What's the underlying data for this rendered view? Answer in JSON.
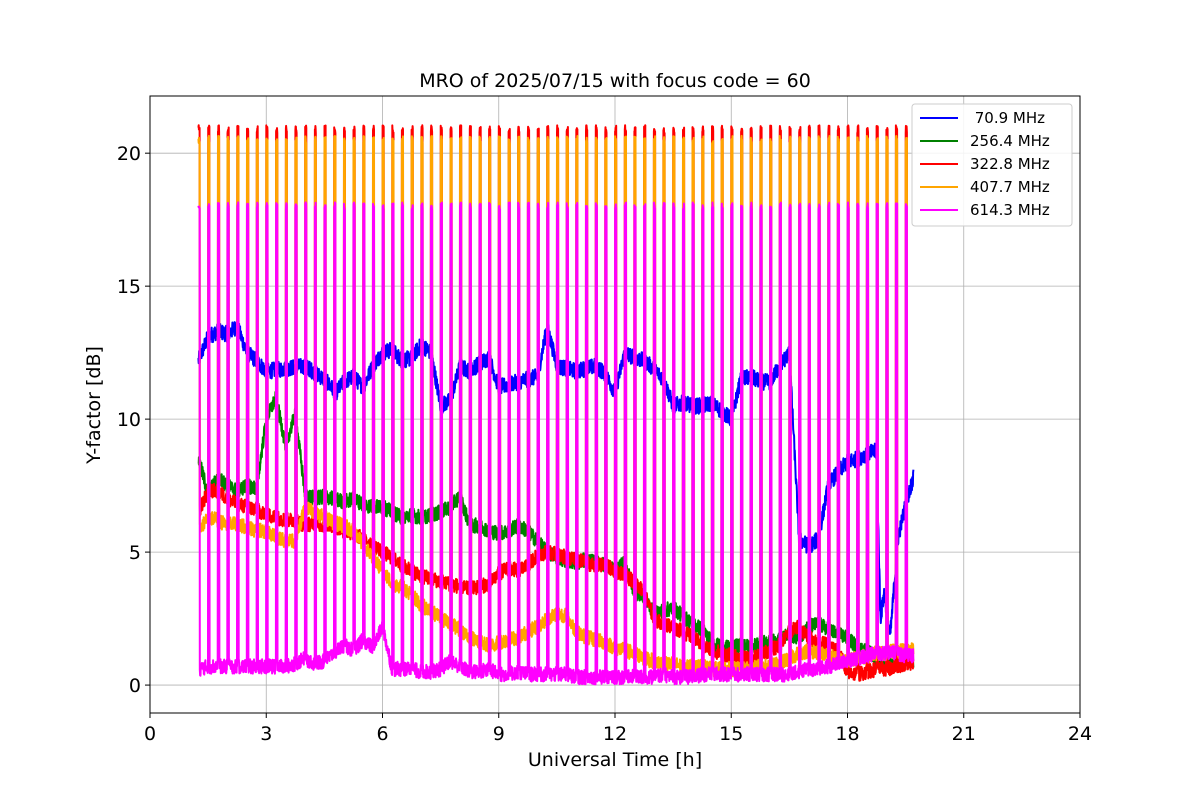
{
  "chart_data": {
    "type": "line",
    "title": "MRO of 2025/07/15 with focus code = 60",
    "xlabel": "Universal Time [h]",
    "ylabel": "Y-factor [dB]",
    "xlim": [
      0,
      24
    ],
    "ylim": [
      -1.05,
      22.15
    ],
    "x_ticks": [
      0,
      3,
      6,
      9,
      12,
      15,
      18,
      21,
      24
    ],
    "y_ticks": [
      0,
      5,
      10,
      15,
      20
    ],
    "grid": true,
    "legend_position": "top-right",
    "calibration_spikes": {
      "start_h": 1.25,
      "end_h": 19.6,
      "period_h": 0.25,
      "width_h": 0.035,
      "peak_values": {
        "322.8 MHz": 20.9,
        "407.7 MHz": 20.5,
        "614.3 MHz": 18.0
      }
    },
    "series": [
      {
        "name": " 70.9 MHz",
        "color": "#0000ff",
        "x": [
          1.25,
          1.5,
          1.75,
          2.0,
          2.25,
          2.5,
          2.75,
          3.0,
          3.5,
          4.0,
          4.5,
          4.8,
          5.0,
          5.25,
          5.5,
          5.75,
          6.0,
          6.25,
          6.5,
          6.75,
          7.0,
          7.25,
          7.5,
          7.75,
          8.0,
          8.25,
          8.5,
          8.75,
          9.0,
          9.5,
          10.0,
          10.25,
          10.5,
          11.0,
          11.5,
          11.75,
          12.0,
          12.25,
          12.5,
          12.75,
          13.0,
          13.25,
          13.5,
          13.75,
          14.0,
          14.25,
          14.5,
          14.75,
          15.0,
          15.25,
          15.5,
          15.75,
          16.0,
          16.25,
          16.5,
          16.75,
          17.0,
          17.25,
          17.5,
          17.75,
          18.0,
          18.25,
          18.5,
          18.75,
          18.85,
          18.95,
          19.1,
          19.3,
          19.5,
          19.7
        ],
        "values": [
          12.2,
          13.1,
          13.3,
          13.2,
          13.5,
          12.5,
          12.2,
          11.8,
          11.9,
          12.0,
          11.5,
          11.0,
          11.4,
          11.6,
          11.2,
          12.0,
          12.5,
          12.6,
          12.2,
          12.3,
          12.8,
          12.5,
          10.5,
          10.7,
          12.0,
          11.8,
          12.1,
          12.3,
          11.2,
          11.4,
          11.6,
          13.5,
          12.0,
          11.8,
          12.0,
          11.7,
          11.0,
          12.5,
          12.3,
          12.2,
          11.9,
          11.5,
          10.5,
          10.6,
          10.5,
          10.5,
          10.6,
          10.3,
          10.0,
          11.5,
          11.6,
          11.4,
          11.4,
          12.0,
          12.5,
          5.5,
          5.2,
          5.5,
          7.5,
          8.0,
          8.4,
          8.5,
          8.7,
          8.8,
          2.5,
          3.5,
          1.8,
          5.5,
          6.8,
          7.8
        ]
      },
      {
        "name": "256.4 MHz",
        "color": "#008000",
        "x": [
          1.25,
          1.5,
          1.75,
          2.0,
          2.25,
          2.5,
          2.75,
          3.0,
          3.25,
          3.5,
          3.75,
          4.0,
          4.25,
          4.5,
          4.75,
          5.0,
          5.25,
          5.5,
          5.75,
          6.0,
          6.25,
          6.5,
          6.75,
          7.0,
          7.25,
          7.5,
          7.75,
          8.0,
          8.25,
          8.5,
          8.75,
          9.0,
          9.25,
          9.5,
          9.75,
          10.0,
          10.25,
          10.5,
          10.75,
          11.0,
          11.25,
          11.5,
          11.75,
          12.0,
          12.25,
          12.5,
          12.75,
          13.0,
          13.25,
          13.5,
          13.75,
          14.0,
          14.25,
          14.5,
          14.75,
          15.0,
          15.25,
          15.5,
          15.75,
          16.0,
          16.25,
          16.5,
          16.75,
          17.0,
          17.25,
          17.5,
          17.75,
          18.0,
          18.25,
          18.5,
          18.75,
          19.0,
          19.25,
          19.5,
          19.7
        ],
        "values": [
          8.5,
          7.2,
          7.8,
          7.5,
          7.3,
          7.5,
          7.4,
          10.0,
          10.8,
          9.0,
          10.2,
          7.2,
          7.0,
          7.1,
          7.0,
          6.9,
          7.0,
          6.8,
          6.7,
          6.7,
          6.5,
          6.3,
          6.4,
          6.3,
          6.4,
          6.5,
          6.7,
          7.1,
          6.0,
          6.0,
          5.8,
          5.7,
          5.8,
          6.0,
          5.8,
          5.4,
          5.0,
          4.8,
          4.7,
          4.6,
          4.7,
          4.6,
          4.5,
          4.3,
          4.6,
          3.5,
          3.3,
          2.7,
          2.8,
          2.9,
          2.6,
          2.3,
          2.1,
          1.6,
          1.4,
          1.4,
          1.5,
          1.4,
          1.6,
          1.6,
          1.7,
          1.9,
          1.8,
          2.2,
          2.3,
          2.1,
          1.9,
          1.8,
          1.4,
          1.3,
          1.0,
          0.8,
          0.8,
          0.9,
          0.9
        ]
      },
      {
        "name": "322.8 MHz",
        "color": "#ff0000",
        "x": [
          1.25,
          1.5,
          1.75,
          2.0,
          2.25,
          2.5,
          2.75,
          3.0,
          3.25,
          3.5,
          3.75,
          4.0,
          4.25,
          4.5,
          4.75,
          5.0,
          5.25,
          5.5,
          5.75,
          6.0,
          6.25,
          6.5,
          6.75,
          7.0,
          7.25,
          7.5,
          7.75,
          8.0,
          8.25,
          8.5,
          8.75,
          9.0,
          9.25,
          9.5,
          9.75,
          10.0,
          10.25,
          10.5,
          10.75,
          11.0,
          11.25,
          11.5,
          11.75,
          12.0,
          12.25,
          12.5,
          12.75,
          13.0,
          13.25,
          13.5,
          13.75,
          14.0,
          14.25,
          14.5,
          14.75,
          15.0,
          15.25,
          15.5,
          15.75,
          16.0,
          16.25,
          16.5,
          16.75,
          17.0,
          17.25,
          17.5,
          17.75,
          18.0,
          18.25,
          18.5,
          18.75,
          19.0,
          19.25,
          19.5,
          19.7
        ],
        "values": [
          6.5,
          7.3,
          7.3,
          7.0,
          6.8,
          6.7,
          6.6,
          6.4,
          6.3,
          6.2,
          6.2,
          6.0,
          6.1,
          6.0,
          6.0,
          5.8,
          5.7,
          5.5,
          5.3,
          5.0,
          4.8,
          4.5,
          4.3,
          4.1,
          4.0,
          3.9,
          3.8,
          3.7,
          3.6,
          3.7,
          3.8,
          4.2,
          4.4,
          4.3,
          4.5,
          4.9,
          5.0,
          4.9,
          4.8,
          4.7,
          4.6,
          4.5,
          4.5,
          4.3,
          4.1,
          3.9,
          3.5,
          2.5,
          2.3,
          2.2,
          2.0,
          1.8,
          1.5,
          1.3,
          1.2,
          1.1,
          1.0,
          1.0,
          1.1,
          1.3,
          1.5,
          2.0,
          2.2,
          1.8,
          1.6,
          1.5,
          1.3,
          0.5,
          0.4,
          0.5,
          0.6,
          0.6,
          0.7,
          0.8,
          0.8
        ]
      },
      {
        "name": "407.7 MHz",
        "color": "#ffa500",
        "x": [
          1.25,
          1.5,
          1.75,
          2.0,
          2.25,
          2.5,
          2.75,
          3.0,
          3.25,
          3.5,
          3.75,
          4.0,
          4.25,
          4.5,
          4.75,
          5.0,
          5.25,
          5.5,
          5.75,
          6.0,
          6.25,
          6.5,
          6.75,
          7.0,
          7.25,
          7.5,
          7.75,
          8.0,
          8.25,
          8.5,
          8.75,
          9.0,
          9.25,
          9.5,
          9.75,
          10.0,
          10.25,
          10.5,
          10.75,
          11.0,
          11.25,
          11.5,
          11.75,
          12.0,
          12.25,
          12.5,
          12.75,
          13.0,
          13.25,
          13.5,
          13.75,
          14.0,
          14.25,
          14.5,
          14.75,
          15.0,
          15.25,
          15.5,
          15.75,
          16.0,
          16.25,
          16.5,
          16.75,
          17.0,
          17.25,
          17.5,
          17.75,
          18.0,
          18.25,
          18.5,
          18.75,
          19.0,
          19.25,
          19.5,
          19.7
        ],
        "values": [
          5.8,
          6.3,
          6.2,
          6.0,
          6.1,
          5.9,
          5.8,
          5.8,
          5.6,
          5.4,
          5.4,
          6.7,
          6.5,
          6.3,
          6.1,
          6.0,
          5.8,
          5.3,
          4.8,
          4.3,
          3.8,
          3.7,
          3.4,
          3.0,
          2.8,
          2.5,
          2.3,
          2.1,
          1.8,
          1.6,
          1.5,
          1.6,
          1.7,
          1.8,
          2.0,
          2.2,
          2.5,
          2.7,
          2.6,
          2.0,
          1.8,
          1.7,
          1.6,
          1.4,
          1.3,
          1.2,
          1.0,
          0.9,
          0.8,
          0.8,
          0.7,
          0.7,
          0.7,
          0.6,
          0.6,
          0.6,
          0.6,
          0.6,
          0.7,
          0.7,
          0.8,
          1.0,
          1.2,
          1.3,
          1.2,
          1.1,
          1.0,
          0.9,
          1.0,
          1.1,
          1.2,
          1.2,
          1.3,
          1.3,
          1.3
        ]
      },
      {
        "name": "614.3 MHz",
        "color": "#ff00ff",
        "x": [
          1.25,
          1.5,
          1.75,
          2.0,
          2.25,
          2.5,
          2.75,
          3.0,
          3.25,
          3.5,
          3.75,
          4.0,
          4.25,
          4.5,
          4.75,
          5.0,
          5.25,
          5.5,
          5.75,
          6.0,
          6.25,
          6.5,
          6.75,
          7.0,
          7.25,
          7.5,
          7.75,
          8.0,
          8.25,
          8.5,
          8.75,
          9.0,
          9.25,
          9.5,
          9.75,
          10.0,
          10.25,
          10.5,
          10.75,
          11.0,
          11.25,
          11.5,
          11.75,
          12.0,
          12.25,
          12.5,
          12.75,
          13.0,
          13.25,
          13.5,
          13.75,
          14.0,
          14.25,
          14.5,
          14.75,
          15.0,
          15.25,
          15.5,
          15.75,
          16.0,
          16.25,
          16.5,
          16.75,
          17.0,
          17.25,
          17.5,
          17.75,
          18.0,
          18.25,
          18.5,
          18.75,
          19.0,
          19.25,
          19.5,
          19.7
        ],
        "values": [
          0.6,
          0.7,
          0.7,
          0.7,
          0.7,
          0.7,
          0.7,
          0.7,
          0.7,
          0.7,
          0.8,
          1.0,
          0.8,
          0.9,
          1.2,
          1.5,
          1.3,
          1.7,
          1.4,
          2.2,
          0.6,
          0.6,
          0.6,
          0.5,
          0.5,
          0.6,
          0.9,
          0.7,
          0.5,
          0.5,
          0.6,
          0.4,
          0.4,
          0.5,
          0.4,
          0.4,
          0.4,
          0.4,
          0.4,
          0.3,
          0.3,
          0.3,
          0.3,
          0.3,
          0.3,
          0.3,
          0.3,
          0.3,
          0.4,
          0.3,
          0.3,
          0.3,
          0.4,
          0.4,
          0.4,
          0.4,
          0.4,
          0.4,
          0.4,
          0.4,
          0.4,
          0.4,
          0.5,
          0.6,
          0.6,
          0.7,
          0.8,
          0.9,
          1.0,
          1.1,
          1.2,
          1.2,
          1.2,
          1.1,
          1.1
        ]
      }
    ]
  }
}
